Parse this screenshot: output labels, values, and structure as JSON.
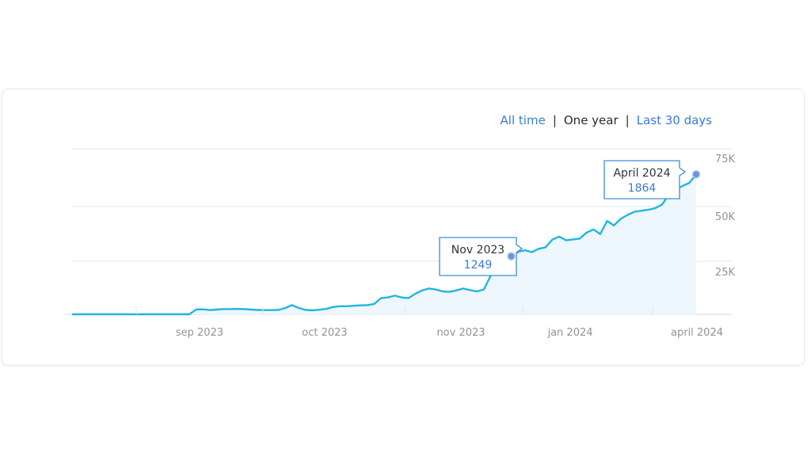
{
  "range_selector": {
    "options": [
      "All time",
      "One year",
      "Last 30 days"
    ],
    "selected": "One year"
  },
  "colors": {
    "line": "#1fb6e0",
    "area": "#eef7fe",
    "link": "#3a7bd5",
    "tooltip_border": "#3a8fd6",
    "tooltip_value": "#3a7bd5",
    "grid": "#e3e6ea",
    "axis_text": "#8f9399"
  },
  "chart_data": {
    "type": "area",
    "title": "",
    "xlabel": "",
    "ylabel": "",
    "x_tick_labels": [
      "sep 2023",
      "oct 2023",
      "nov 2023",
      "jan 2024",
      "april 2024"
    ],
    "y_tick_labels": [
      "25K",
      "50K",
      "75K"
    ],
    "y_ticks": [
      25000,
      50000,
      75000
    ],
    "ylim": [
      0,
      75000
    ],
    "grid": true,
    "y_axis_position": "right",
    "series": [
      {
        "values": [
          0,
          0,
          0,
          0,
          0,
          0,
          0,
          0,
          0,
          0,
          0,
          0,
          0,
          0,
          0,
          0,
          0,
          0,
          2300,
          2400,
          2000,
          2300,
          2500,
          2500,
          2600,
          2500,
          2300,
          2100,
          2000,
          2000,
          2100,
          3000,
          4400,
          3000,
          2100,
          1900,
          2200,
          2600,
          3500,
          3900,
          3900,
          4100,
          4300,
          4400,
          5000,
          7800,
          8100,
          9000,
          8100,
          7800,
          9900,
          11500,
          12400,
          11900,
          11000,
          10800,
          11500,
          12400,
          11600,
          11000,
          11900,
          18500,
          21600,
          25500,
          27900,
          30000,
          30800,
          29900,
          31500,
          32200,
          35900,
          37400,
          35600,
          36000,
          36400,
          39300,
          40800,
          38600,
          44900,
          42700,
          45900,
          47800,
          49300,
          49800,
          50300,
          51000,
          52700,
          57400,
          60000,
          61700,
          63200,
          67300
        ]
      }
    ],
    "annotations": [
      {
        "label": "Nov 2023",
        "value": "1249"
      },
      {
        "label": "April 2024",
        "value": "1864"
      }
    ]
  }
}
